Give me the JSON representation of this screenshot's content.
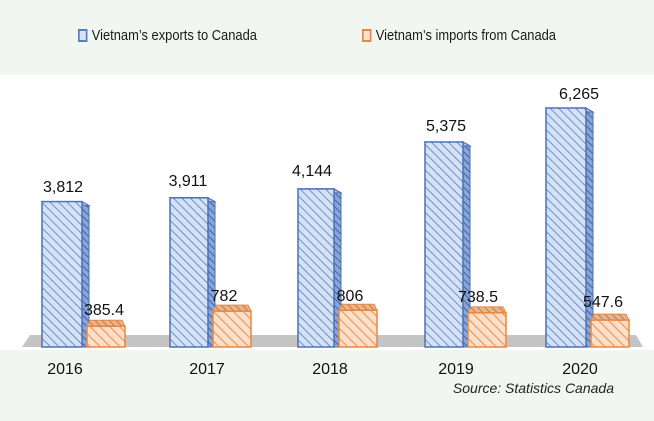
{
  "chart_data": {
    "type": "bar",
    "title": "",
    "xlabel": "",
    "ylabel": "",
    "categories": [
      "2016",
      "2017",
      "2018",
      "2019",
      "2020"
    ],
    "series": [
      {
        "name": "Vietnam’s exports to Canada",
        "values": [
          3812,
          3911,
          4144,
          5375,
          6265
        ],
        "labels": [
          "3,812",
          "3,911",
          "4,144",
          "5,375",
          "6,265"
        ],
        "color": "#4a72b8",
        "fill": "#cddcf2"
      },
      {
        "name": "Vietnam’s imports from Canada",
        "values": [
          385.4,
          782,
          806,
          738.5,
          547.6
        ],
        "labels": [
          "385.4",
          "782",
          "806",
          "738.5",
          "547.6"
        ],
        "color": "#e8873e",
        "fill": "#fbd9bf"
      }
    ],
    "legend_position": "top",
    "grid": false,
    "source": "Source: Statistics Canada"
  }
}
